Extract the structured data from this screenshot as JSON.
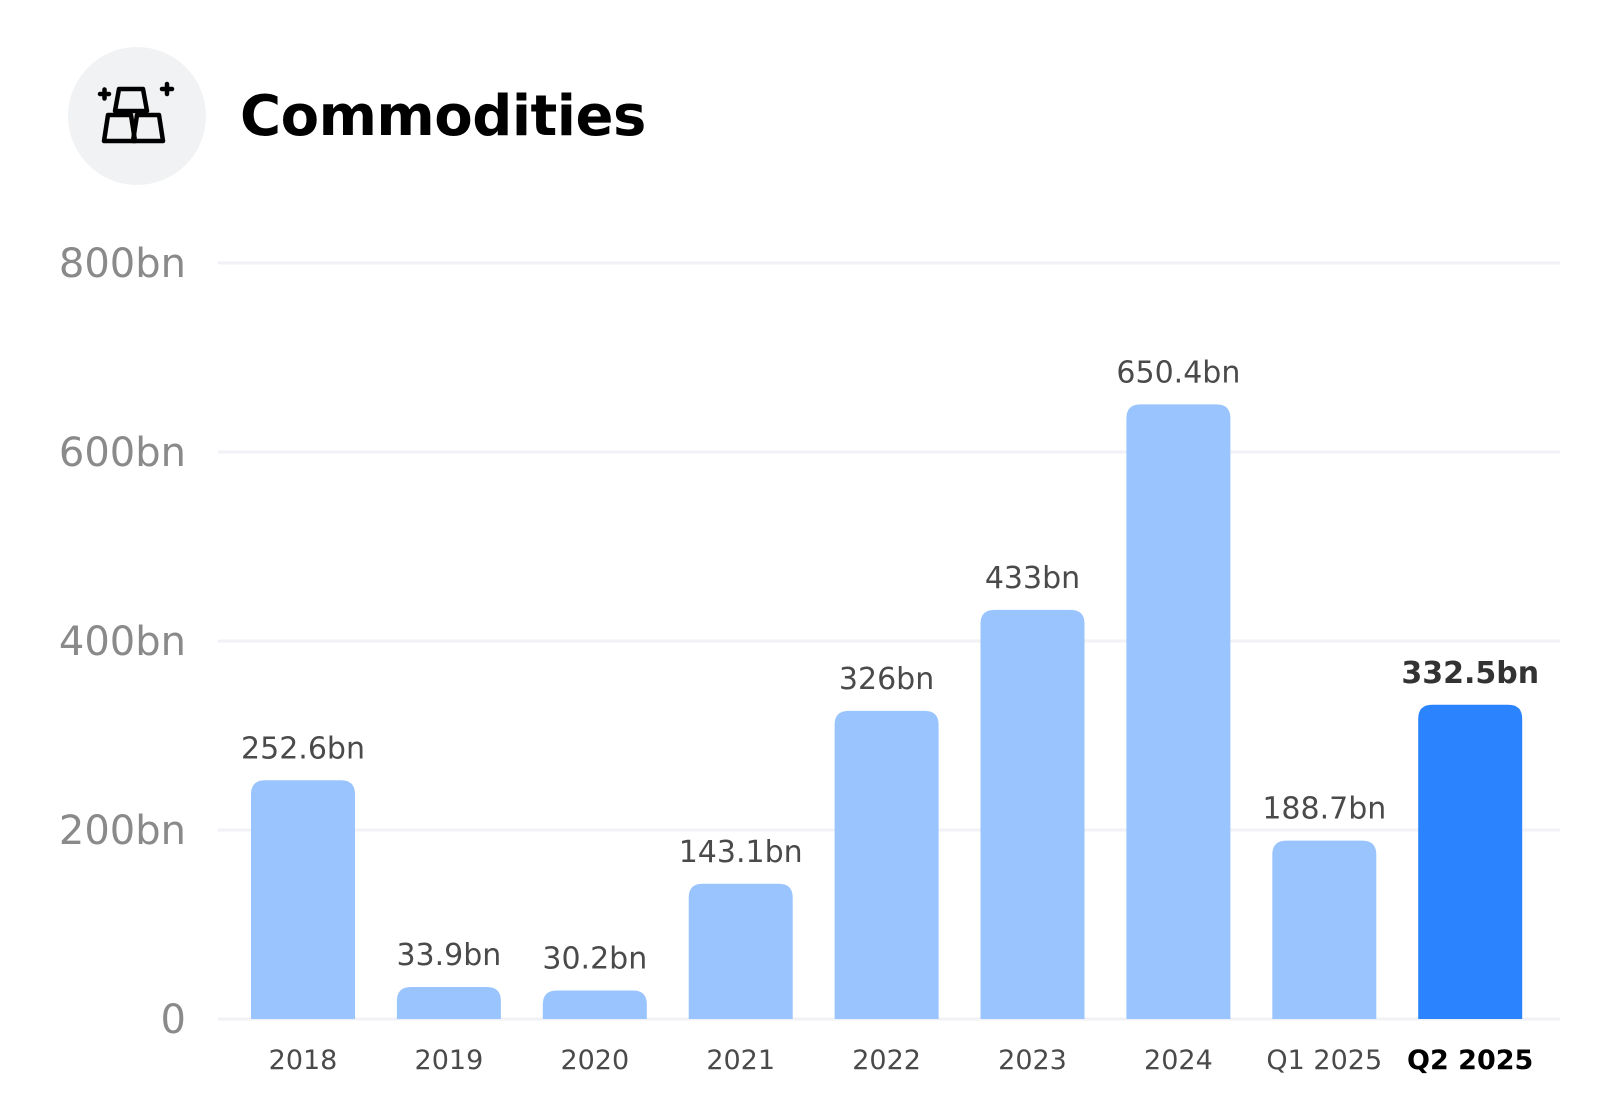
{
  "header": {
    "title": "Commodities",
    "icon": "gold-bars-icon"
  },
  "colors": {
    "bar": "#99c4fd",
    "bar_highlight": "#2b84fe",
    "gridline": "#f1f2f6"
  },
  "chart_data": {
    "type": "bar",
    "title": "Commodities",
    "xlabel": "",
    "ylabel": "",
    "ylim": [
      0,
      800
    ],
    "yticks": [
      0,
      200,
      400,
      600,
      800
    ],
    "ytick_labels": [
      "0",
      "200bn",
      "400bn",
      "600bn",
      "800bn"
    ],
    "categories": [
      "2018",
      "2019",
      "2020",
      "2021",
      "2022",
      "2023",
      "2024",
      "Q1 2025",
      "Q2 2025"
    ],
    "values": [
      252.6,
      33.9,
      30.2,
      143.1,
      326,
      433,
      650.4,
      188.7,
      332.5
    ],
    "value_labels": [
      "252.6bn",
      "33.9bn",
      "30.2bn",
      "143.1bn",
      "326bn",
      "433bn",
      "650.4bn",
      "188.7bn",
      "332.5bn"
    ],
    "highlight_category": "Q2 2025",
    "grid": true,
    "legend": "none"
  }
}
